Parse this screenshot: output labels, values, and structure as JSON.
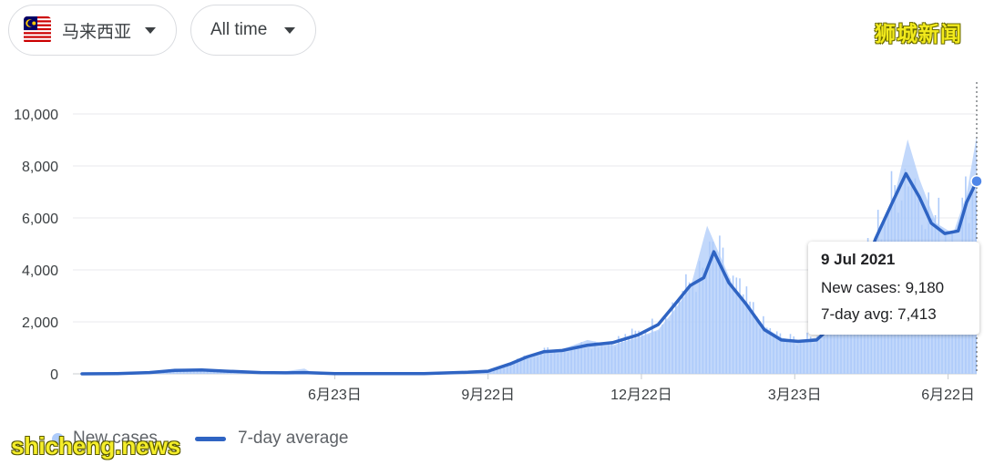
{
  "filters": {
    "country_label": "马来西亚",
    "time_label": "All time"
  },
  "watermarks": {
    "top": "狮城新闻",
    "bottom": "shicheng.news"
  },
  "tooltip": {
    "date": "9 Jul 2021",
    "cases_label": "New cases: ",
    "cases_value": "9,180",
    "avg_label": "7-day avg: ",
    "avg_value": "7,413"
  },
  "legend": {
    "cases": "New cases",
    "avg": "7-day average"
  },
  "colors": {
    "bars": "#aecbfa",
    "line": "#2f64c3",
    "marker": "#4f86e8",
    "grid": "#e8eaed"
  },
  "chart_data": {
    "type": "area",
    "title": "",
    "xlabel": "",
    "ylabel": "",
    "ylim": [
      0,
      11000
    ],
    "y_ticks": [
      0,
      2000,
      4000,
      6000,
      8000,
      10000
    ],
    "y_tick_labels": [
      "0",
      "2,000",
      "4,000",
      "6,000",
      "8,000",
      "10,000"
    ],
    "x_ticks": [
      "2020-06-23",
      "2020-09-22",
      "2020-12-22",
      "2021-03-23",
      "2021-06-22"
    ],
    "x_tick_labels": [
      "6月23日",
      "9月22日",
      "12月22日",
      "3月23日",
      "6月22日"
    ],
    "x_range": [
      "2020-01-25",
      "2021-07-09"
    ],
    "grid": true,
    "legend_position": "bottom-left",
    "series": [
      {
        "name": "New cases",
        "style": "bars",
        "points": [
          [
            "2020-01-25",
            3
          ],
          [
            "2020-02-15",
            40
          ],
          [
            "2020-03-05",
            60
          ],
          [
            "2020-03-20",
            200
          ],
          [
            "2020-04-05",
            180
          ],
          [
            "2020-04-20",
            80
          ],
          [
            "2020-05-10",
            60
          ],
          [
            "2020-05-25",
            100
          ],
          [
            "2020-06-05",
            200
          ],
          [
            "2020-06-10",
            30
          ],
          [
            "2020-06-23",
            10
          ],
          [
            "2020-07-15",
            10
          ],
          [
            "2020-08-15",
            12
          ],
          [
            "2020-09-10",
            60
          ],
          [
            "2020-09-22",
            80
          ],
          [
            "2020-10-05",
            400
          ],
          [
            "2020-10-15",
            700
          ],
          [
            "2020-10-25",
            900
          ],
          [
            "2020-11-05",
            950
          ],
          [
            "2020-11-20",
            1300
          ],
          [
            "2020-12-05",
            1100
          ],
          [
            "2020-12-20",
            1400
          ],
          [
            "2021-01-01",
            1700
          ],
          [
            "2021-01-10",
            2400
          ],
          [
            "2021-01-20",
            3300
          ],
          [
            "2021-01-30",
            5700
          ],
          [
            "2021-02-05",
            4800
          ],
          [
            "2021-02-15",
            3300
          ],
          [
            "2021-02-25",
            2500
          ],
          [
            "2021-03-05",
            1800
          ],
          [
            "2021-03-15",
            1400
          ],
          [
            "2021-03-25",
            1250
          ],
          [
            "2021-04-05",
            1400
          ],
          [
            "2021-04-20",
            2200
          ],
          [
            "2021-05-01",
            3500
          ],
          [
            "2021-05-10",
            5200
          ],
          [
            "2021-05-20",
            6500
          ],
          [
            "2021-05-29",
            9020
          ],
          [
            "2021-06-05",
            7500
          ],
          [
            "2021-06-15",
            5800
          ],
          [
            "2021-06-25",
            5400
          ],
          [
            "2021-07-03",
            6900
          ],
          [
            "2021-07-09",
            9180
          ]
        ]
      },
      {
        "name": "7-day average",
        "style": "line",
        "points": [
          [
            "2020-01-25",
            0
          ],
          [
            "2020-02-15",
            10
          ],
          [
            "2020-03-05",
            50
          ],
          [
            "2020-03-20",
            130
          ],
          [
            "2020-04-05",
            150
          ],
          [
            "2020-04-20",
            100
          ],
          [
            "2020-05-10",
            50
          ],
          [
            "2020-05-25",
            40
          ],
          [
            "2020-06-05",
            50
          ],
          [
            "2020-06-23",
            10
          ],
          [
            "2020-07-15",
            8
          ],
          [
            "2020-08-15",
            10
          ],
          [
            "2020-09-10",
            60
          ],
          [
            "2020-09-22",
            100
          ],
          [
            "2020-10-05",
            380
          ],
          [
            "2020-10-15",
            650
          ],
          [
            "2020-10-25",
            850
          ],
          [
            "2020-11-05",
            900
          ],
          [
            "2020-11-20",
            1100
          ],
          [
            "2020-12-05",
            1200
          ],
          [
            "2020-12-20",
            1500
          ],
          [
            "2021-01-01",
            1900
          ],
          [
            "2021-01-10",
            2600
          ],
          [
            "2021-01-20",
            3400
          ],
          [
            "2021-01-28",
            3700
          ],
          [
            "2021-02-03",
            4700
          ],
          [
            "2021-02-12",
            3500
          ],
          [
            "2021-02-22",
            2700
          ],
          [
            "2021-03-05",
            1700
          ],
          [
            "2021-03-15",
            1300
          ],
          [
            "2021-03-25",
            1250
          ],
          [
            "2021-04-05",
            1300
          ],
          [
            "2021-04-20",
            2200
          ],
          [
            "2021-05-01",
            3600
          ],
          [
            "2021-05-10",
            5200
          ],
          [
            "2021-05-20",
            6600
          ],
          [
            "2021-05-28",
            7700
          ],
          [
            "2021-06-05",
            6800
          ],
          [
            "2021-06-12",
            5800
          ],
          [
            "2021-06-20",
            5400
          ],
          [
            "2021-06-28",
            5500
          ],
          [
            "2021-07-03",
            6600
          ],
          [
            "2021-07-09",
            7413
          ]
        ]
      }
    ],
    "highlight": {
      "date": "2021-07-09",
      "new_cases": 9180,
      "avg": 7413
    }
  }
}
